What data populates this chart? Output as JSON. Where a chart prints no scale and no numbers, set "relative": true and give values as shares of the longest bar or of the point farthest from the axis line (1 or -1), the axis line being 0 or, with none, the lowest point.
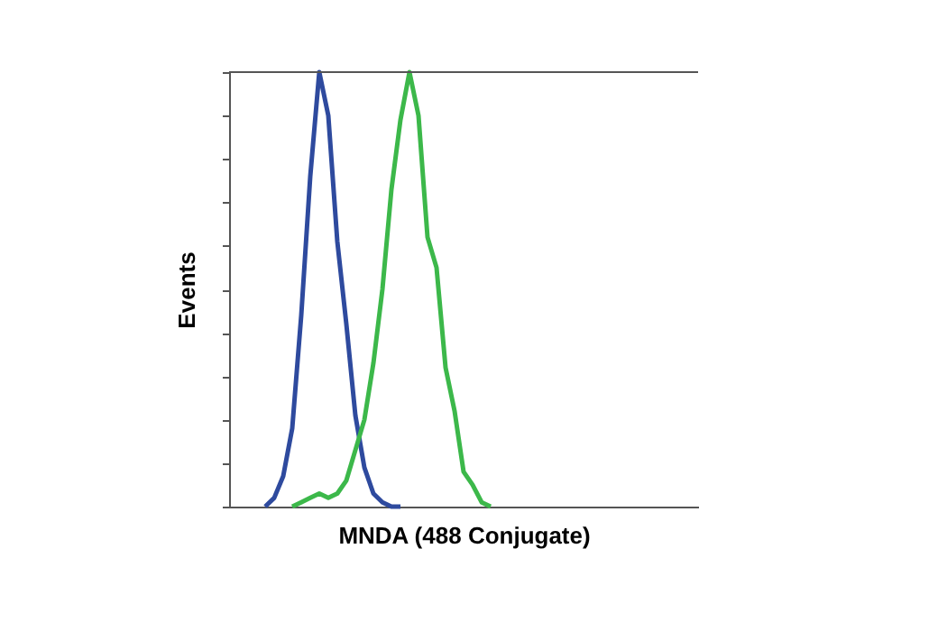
{
  "chart_data": {
    "type": "line",
    "xlabel": "MNDA (488 Conjugate)",
    "ylabel": "Events",
    "relative": true,
    "legend": false,
    "grid": false,
    "marker": "none",
    "categories": [
      null,
      null,
      null,
      null,
      null,
      null,
      null,
      null,
      null,
      null,
      null,
      null,
      null,
      null,
      null,
      null,
      null,
      null,
      null,
      null,
      null,
      null,
      null,
      null,
      null,
      null,
      null,
      null,
      null,
      null,
      null,
      null,
      null,
      null,
      null,
      null,
      null,
      null,
      null,
      null,
      null,
      null,
      null,
      null,
      null,
      null,
      null,
      null,
      null,
      null,
      null,
      null,
      null
    ],
    "series": [
      {
        "color": "#2e4a9e",
        "values": [
          null,
          null,
          null,
          null,
          0,
          0.02,
          0.07,
          0.18,
          0.44,
          0.76,
          1.0,
          0.9,
          0.61,
          0.42,
          0.21,
          0.09,
          0.03,
          0.01,
          0,
          0,
          null,
          null,
          null,
          null,
          null,
          null,
          null,
          null,
          null,
          null,
          null,
          null,
          null,
          null,
          null,
          null,
          null,
          null,
          null,
          null,
          null,
          null,
          null,
          null,
          null,
          null,
          null,
          null,
          null,
          null,
          null,
          null,
          null
        ]
      },
      {
        "color": "#3cb84a",
        "values": [
          null,
          null,
          null,
          null,
          null,
          null,
          null,
          0,
          0.01,
          0.02,
          0.03,
          0.02,
          0.03,
          0.06,
          0.13,
          0.2,
          0.33,
          0.5,
          0.73,
          0.89,
          1.0,
          0.9,
          0.62,
          0.55,
          0.32,
          0.22,
          0.08,
          0.05,
          0.01,
          0,
          null,
          null,
          null,
          null,
          null,
          null,
          null,
          null,
          null,
          null,
          null,
          null,
          null,
          null,
          null,
          null,
          null,
          null,
          null,
          null,
          null,
          null,
          null
        ]
      }
    ]
  }
}
